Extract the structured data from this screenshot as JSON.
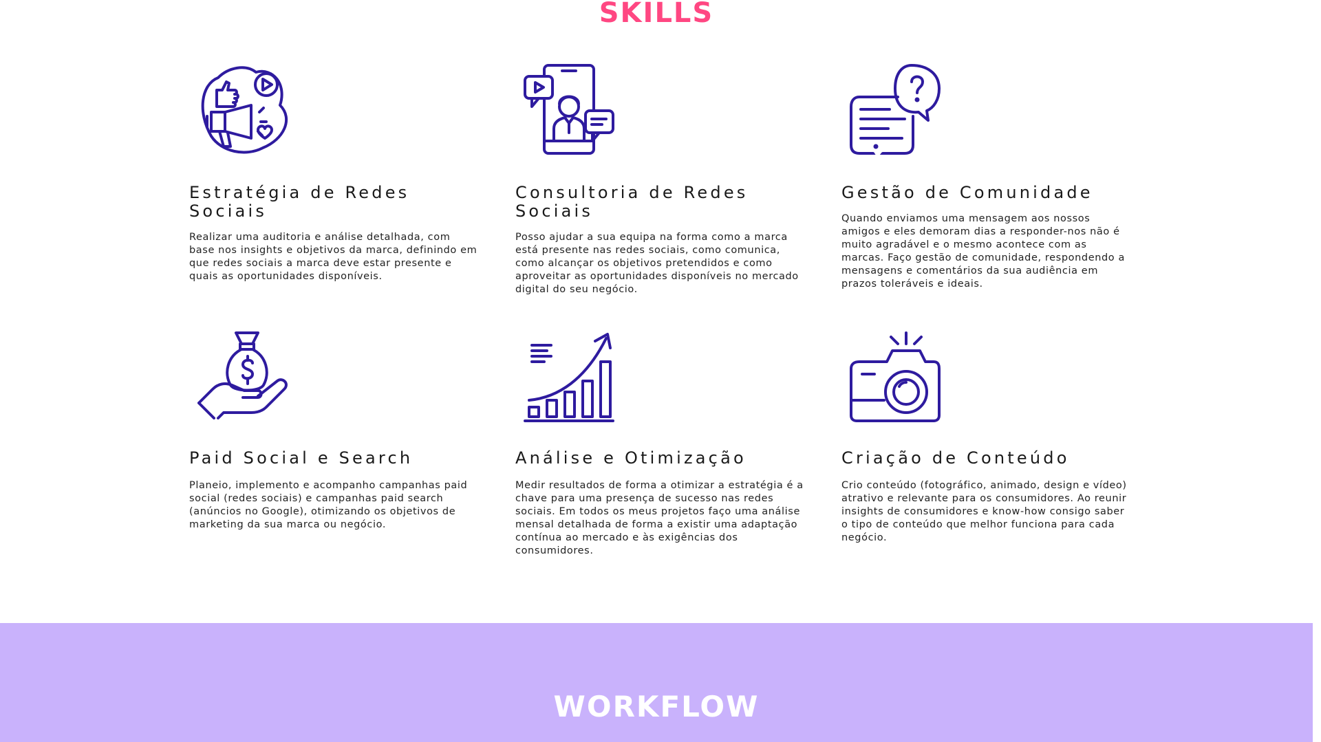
{
  "skills": {
    "title": "SKILLS",
    "items": [
      {
        "icon": "megaphone-social-icon",
        "heading": "Estratégia de Redes Sociais",
        "text": "Realizar uma auditoria e análise detalhada, com base nos insights e objetivos da marca, definindo em que redes sociais a marca deve estar presente e quais as oportunidades disponíveis."
      },
      {
        "icon": "phone-consultant-icon",
        "heading": "Consultoria de Redes Sociais",
        "text": "Posso ajudar a sua equipa na forma como a marca está presente nas redes sociais, como comunica, como alcançar os objetivos pretendidos e como aproveitar as oportunidades disponíveis no mercado digital do seu negócio."
      },
      {
        "icon": "chat-bubbles-icon",
        "heading": "Gestão de Comunidade",
        "text": "Quando enviamos uma mensagem aos nossos amigos e eles demoram dias a responder-nos não é muito agradável e o mesmo acontece com as marcas. Faço gestão de comunidade, respondendo a mensagens e comentários da sua audiência em prazos toleráveis e ideais."
      },
      {
        "icon": "money-bag-hand-icon",
        "heading": "Paid Social e Search",
        "text": "Planeio, implemento e acompanho campanhas paid social (redes sociais) e campanhas paid search (anúncios no Google), otimizando os objetivos de marketing da sua marca ou negócio."
      },
      {
        "icon": "growth-chart-icon",
        "heading": "Análise e Otimização",
        "text": "Medir resultados de forma a otimizar a estratégia é a chave para uma presença de sucesso nas redes sociais. Em todos os meus projetos faço uma análise mensal detalhada de forma a existir uma adaptação contínua ao mercado e às exigências dos consumidores."
      },
      {
        "icon": "camera-icon",
        "heading": "Criação de Conteúdo",
        "text": "Crio conteúdo (fotográfico, animado, design e vídeo) atrativo e relevante para os consumidores. Ao reunir insights de consumidores e know-how consigo saber o tipo de conteúdo que melhor funciona para cada negócio."
      }
    ]
  },
  "workflow": {
    "title": "WORKFLOW"
  },
  "colors": {
    "accent_pink": "#ff4782",
    "icon_indigo": "#2e1b9f",
    "workflow_bg": "#c9b2fc"
  }
}
